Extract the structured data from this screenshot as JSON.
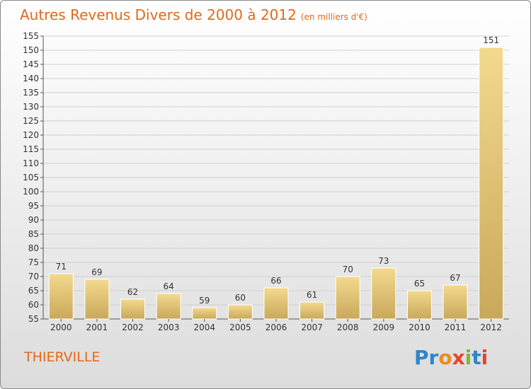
{
  "chart_data": {
    "type": "bar",
    "title": "Autres Revenus Divers de 2000 à 2012",
    "subtitle": "(en milliers d'€)",
    "categories": [
      "2000",
      "2001",
      "2002",
      "2003",
      "2004",
      "2005",
      "2006",
      "2007",
      "2008",
      "2009",
      "2010",
      "2011",
      "2012"
    ],
    "values": [
      71,
      69,
      62,
      64,
      59,
      60,
      66,
      61,
      70,
      73,
      65,
      67,
      151
    ],
    "ylim": [
      55,
      155
    ],
    "yticks": [
      55,
      60,
      65,
      70,
      75,
      80,
      85,
      90,
      95,
      100,
      105,
      110,
      115,
      120,
      125,
      130,
      135,
      140,
      145,
      150,
      155
    ],
    "grid": true,
    "data_labels": true,
    "bar_color": "#e8c97a",
    "xlabel": "",
    "ylabel": ""
  },
  "footer": {
    "city": "THIERVILLE",
    "logo_letters": [
      {
        "ch": "P",
        "color": "#2e86c8"
      },
      {
        "ch": "r",
        "color": "#2e86c8"
      },
      {
        "ch": "o",
        "color": "#f08a1c"
      },
      {
        "ch": "x",
        "color": "#e8442a"
      },
      {
        "ch": "i",
        "color": "#7ab83a"
      },
      {
        "ch": "t",
        "color": "#2e86c8"
      },
      {
        "ch": "i",
        "color": "#e8442a"
      }
    ]
  }
}
